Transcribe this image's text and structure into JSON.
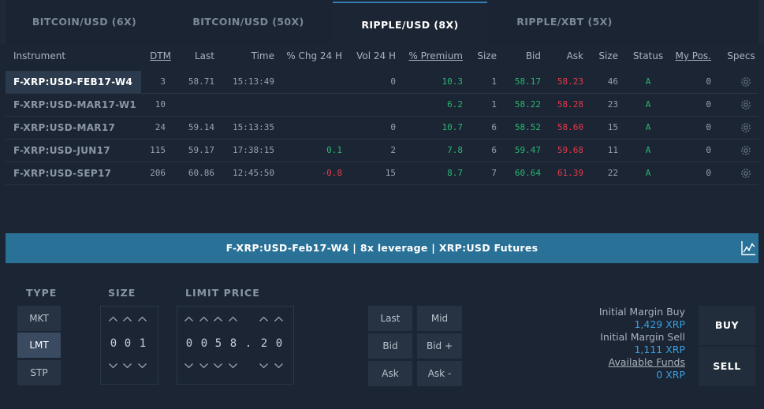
{
  "tabs": [
    {
      "label": "BITCOIN/USD (6X)"
    },
    {
      "label": "BITCOIN/USD (50X)"
    },
    {
      "label": "RIPPLE/USD (8X)"
    },
    {
      "label": "RIPPLE/XBT (5X)"
    }
  ],
  "columns": {
    "instrument": "Instrument",
    "dtm": "DTM",
    "last": "Last",
    "time": "Time",
    "chg": "% Chg 24 H",
    "vol": "Vol 24 H",
    "premium": "% Premium",
    "size": "Size",
    "bid": "Bid",
    "ask": "Ask",
    "size2": "Size",
    "status": "Status",
    "mypos": "My Pos.",
    "specs": "Specs"
  },
  "rows": [
    {
      "instrument": "F-XRP:USD-FEB17-W4",
      "dtm": "3",
      "last": "58.71",
      "time": "15:13:49",
      "chg": "",
      "vol": "0",
      "premium": "10.3",
      "size": "1",
      "bid": "58.17",
      "ask": "58.23",
      "size2": "46",
      "status": "A",
      "mypos": "0"
    },
    {
      "instrument": "F-XRP:USD-MAR17-W1",
      "dtm": "10",
      "last": "",
      "time": "",
      "chg": "",
      "vol": "",
      "premium": "6.2",
      "size": "1",
      "bid": "58.22",
      "ask": "58.28",
      "size2": "23",
      "status": "A",
      "mypos": "0"
    },
    {
      "instrument": "F-XRP:USD-MAR17",
      "dtm": "24",
      "last": "59.14",
      "time": "15:13:35",
      "chg": "",
      "vol": "0",
      "premium": "10.7",
      "size": "6",
      "bid": "58.52",
      "ask": "58.60",
      "size2": "15",
      "status": "A",
      "mypos": "0"
    },
    {
      "instrument": "F-XRP:USD-JUN17",
      "dtm": "115",
      "last": "59.17",
      "time": "17:38:15",
      "chg": "0.1",
      "vol": "2",
      "premium": "7.8",
      "size": "6",
      "bid": "59.47",
      "ask": "59.68",
      "size2": "11",
      "status": "A",
      "mypos": "0"
    },
    {
      "instrument": "F-XRP:USD-SEP17",
      "dtm": "206",
      "last": "60.86",
      "time": "12:45:50",
      "chg": "-0.8",
      "vol": "15",
      "premium": "8.7",
      "size": "7",
      "bid": "60.64",
      "ask": "61.39",
      "size2": "22",
      "status": "A",
      "mypos": "0"
    }
  ],
  "banner": {
    "title": "F-XRP:USD-Feb17-W4 | 8x leverage | XRP:USD Futures"
  },
  "order": {
    "type_label": "TYPE",
    "types": [
      "MKT",
      "LMT",
      "STP"
    ],
    "size_label": "SIZE",
    "size_digits": [
      "0",
      "0",
      "1"
    ],
    "price_label": "LIMIT PRICE",
    "price_digits": [
      "0",
      "0",
      "5",
      "8",
      ".",
      "2",
      "0"
    ],
    "quick": {
      "last": "Last",
      "mid": "Mid",
      "bid": "Bid",
      "bid_plus": "Bid +",
      "ask": "Ask",
      "ask_minus": "Ask -"
    },
    "margin_buy_label": "Initial Margin Buy",
    "margin_buy_value": "1,429 XRP",
    "margin_sell_label": "Initial Margin Sell",
    "margin_sell_value": "1,111 XRP",
    "funds_label": "Available Funds",
    "funds_value": "0 XRP",
    "buy": "BUY",
    "sell": "SELL"
  },
  "colors": {
    "accent": "#2f7fb5",
    "banner": "#2a7197",
    "positive": "#2bb673",
    "negative": "#e33b4c",
    "link": "#3b9fe0"
  }
}
